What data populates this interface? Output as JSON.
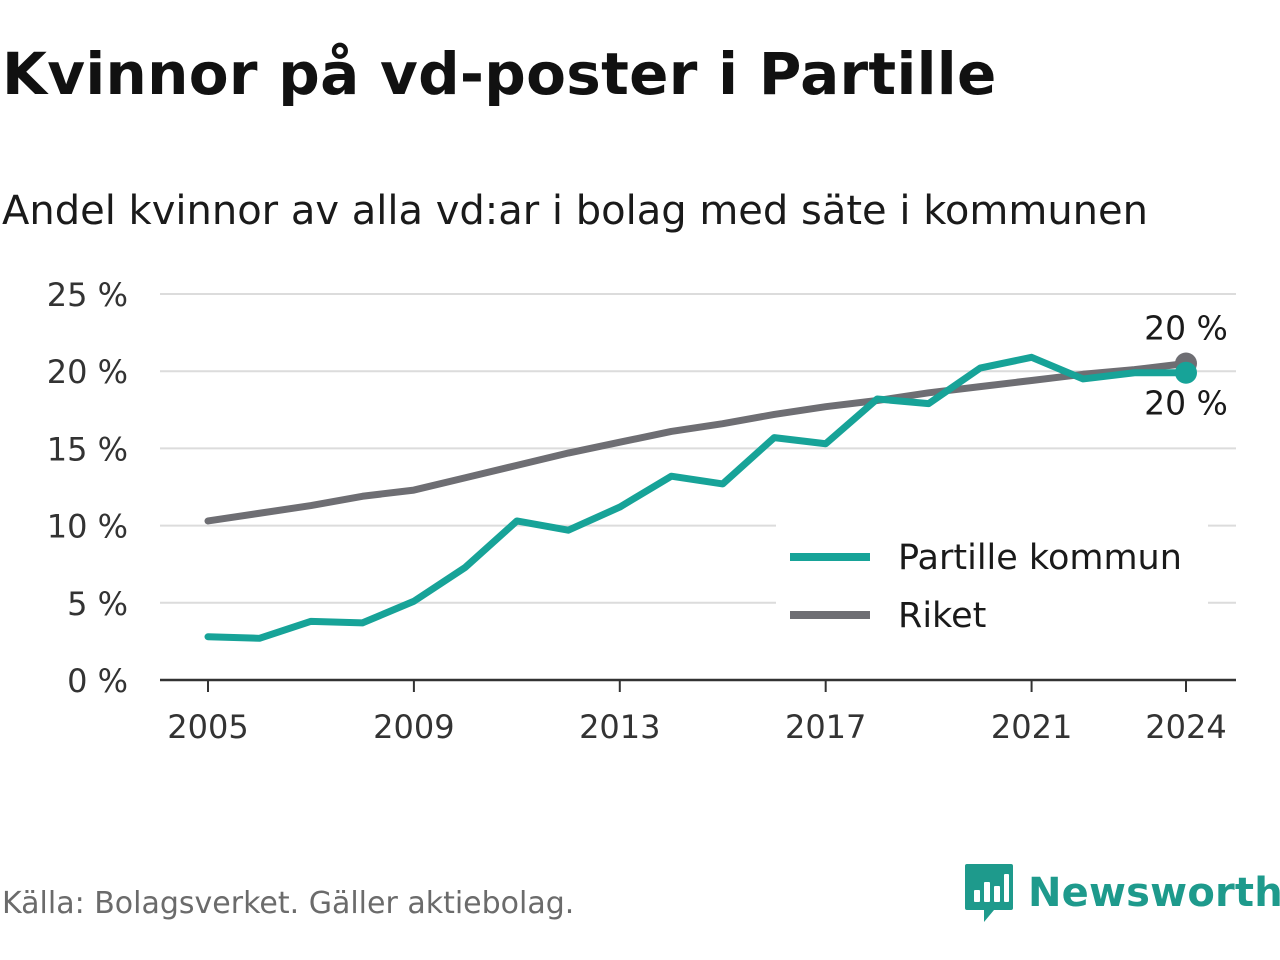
{
  "title": "Kvinnor på vd-poster i Partille",
  "subtitle": "Andel kvinnor av alla vd:ar i bolag med säte i kommunen",
  "source": "Källa: Bolagsverket. Gäller aktiebolag.",
  "brand": {
    "name": "Newsworthy",
    "icon": "newsworthy-logo-icon",
    "color": "#1e9a8c"
  },
  "chart_data": {
    "type": "line",
    "x": [
      2005,
      2006,
      2007,
      2008,
      2009,
      2010,
      2011,
      2012,
      2013,
      2014,
      2015,
      2016,
      2017,
      2018,
      2019,
      2020,
      2021,
      2022,
      2023,
      2024
    ],
    "x_ticks": [
      2005,
      2009,
      2013,
      2017,
      2021,
      2024
    ],
    "y_ticks": [
      0,
      5,
      10,
      15,
      20,
      25
    ],
    "y_tick_labels": [
      "0 %",
      "5 %",
      "10 %",
      "15 %",
      "20 %",
      "25 %"
    ],
    "ylim": [
      0,
      25
    ],
    "grid": true,
    "legend_position": "bottom-right",
    "series": [
      {
        "name": "Partille kommun",
        "color": "#17a398",
        "values": [
          2.8,
          2.7,
          3.8,
          3.7,
          5.1,
          7.3,
          10.3,
          9.7,
          11.2,
          13.2,
          12.7,
          15.7,
          15.3,
          18.2,
          17.9,
          20.2,
          20.9,
          19.5,
          19.9,
          19.9
        ],
        "end_label": "20 %"
      },
      {
        "name": "Riket",
        "color": "#6e6e73",
        "values": [
          10.3,
          10.8,
          11.3,
          11.9,
          12.3,
          13.1,
          13.9,
          14.7,
          15.4,
          16.1,
          16.6,
          17.2,
          17.7,
          18.1,
          18.6,
          19.0,
          19.4,
          19.8,
          20.1,
          20.5
        ],
        "end_label": "20 %"
      }
    ]
  }
}
